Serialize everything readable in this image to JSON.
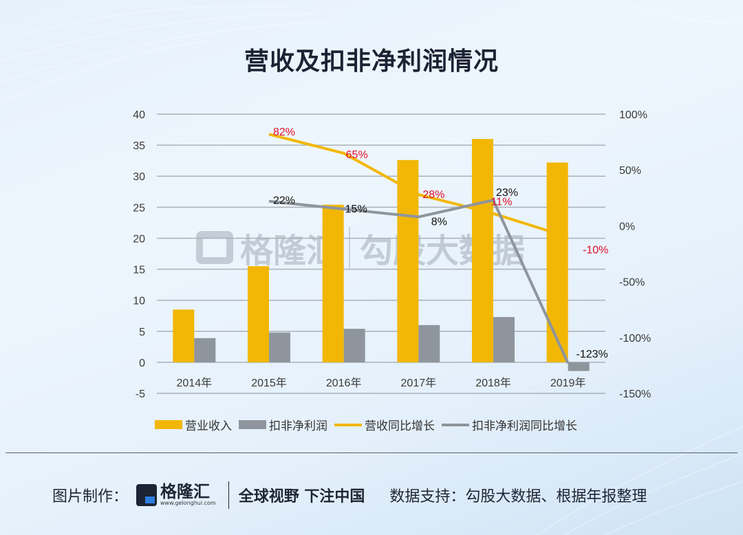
{
  "title": "营收及扣非净利润情况",
  "chart_data": {
    "type": "bar+line",
    "title": "营收及扣非净利润情况",
    "categories": [
      "2014年",
      "2015年",
      "2016年",
      "2017年",
      "2018年",
      "2019年"
    ],
    "series": [
      {
        "name": "营业收入",
        "type": "bar",
        "axis": "left",
        "color": "#F2B705",
        "values": [
          8.5,
          15.5,
          25.4,
          32.6,
          36.0,
          32.2
        ]
      },
      {
        "name": "扣非净利润",
        "type": "bar",
        "axis": "left",
        "color": "#8E959C",
        "values": [
          3.9,
          4.8,
          5.4,
          6.0,
          7.3,
          -1.4
        ]
      },
      {
        "name": "营收同比增长",
        "type": "line",
        "axis": "right",
        "color": "#F2B705",
        "values": [
          null,
          82,
          65,
          28,
          11,
          -10
        ],
        "labels": [
          "",
          "82%",
          "65%",
          "28%",
          "11%",
          "-10%"
        ],
        "label_color": "#E0102A"
      },
      {
        "name": "扣非净利润同比增长",
        "type": "line",
        "axis": "right",
        "color": "#8E959C",
        "values": [
          null,
          22,
          15,
          8,
          23,
          -123
        ],
        "labels": [
          "",
          "22%",
          "15%",
          "8%",
          "23%",
          "-123%"
        ],
        "label_color": "#111111"
      }
    ],
    "left_axis": {
      "ticks": [
        "40",
        "35",
        "30",
        "25",
        "20",
        "15",
        "10",
        "5",
        "0",
        "-5"
      ],
      "ylim": [
        -5,
        40
      ]
    },
    "right_axis": {
      "ticks": [
        "100%",
        "50%",
        "0%",
        "-50%",
        "-100%",
        "-150%"
      ],
      "ylim": [
        -150,
        100
      ]
    },
    "xlabel": "",
    "ylabel": "",
    "grid": true,
    "legend_position": "bottom"
  },
  "legend": [
    "营业收入",
    "扣非净利润",
    "营收同比增长",
    "扣非净利润同比增长"
  ],
  "watermark": {
    "brand": "格隆汇",
    "url": "www.gelonghui.com",
    "text": "勾股大数据"
  },
  "footer": {
    "made_by_label": "图片制作：",
    "logo_name": "格隆汇",
    "logo_url": "www.gelonghui.com",
    "slogan": "全球视野 下注中国",
    "source": "数据支持：勾股大数据、根据年报整理"
  }
}
